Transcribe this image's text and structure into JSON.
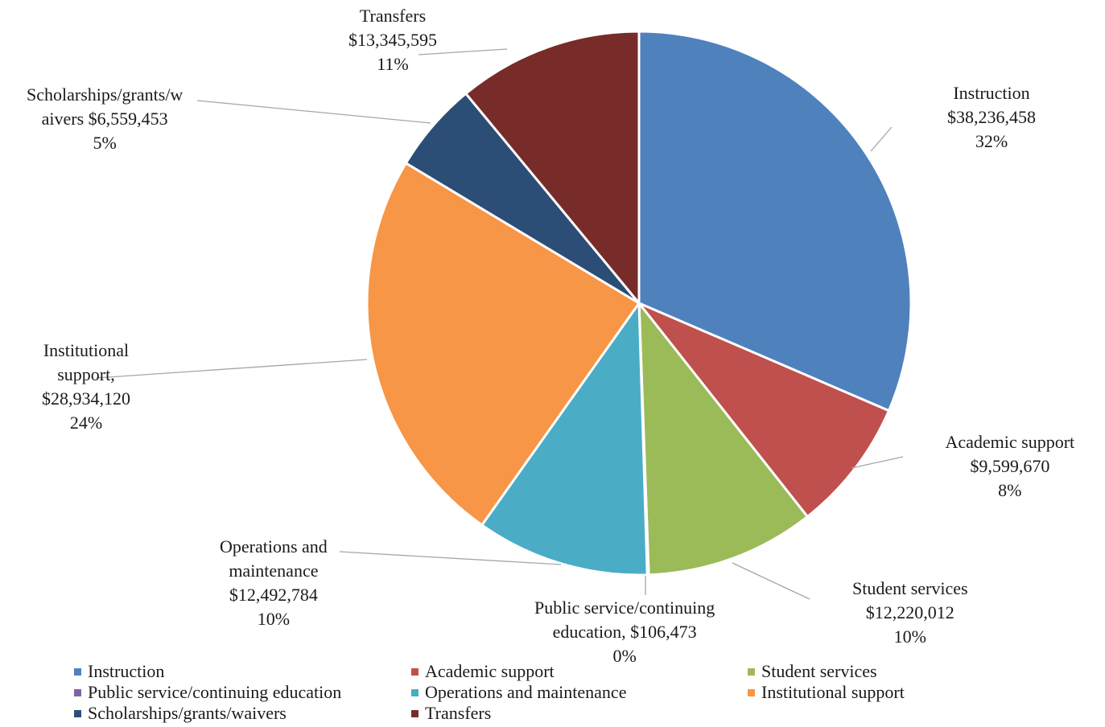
{
  "chart_data": {
    "type": "pie",
    "title": "",
    "slices": [
      {
        "name": "Instruction",
        "value": 38236458,
        "percent": "32%",
        "color": "#4F81BD",
        "label": "Instruction\n$38,236,458\n32%"
      },
      {
        "name": "Academic support",
        "value": 9599670,
        "percent": "8%",
        "color": "#C0504D",
        "label": "Academic support\n$9,599,670\n8%"
      },
      {
        "name": "Student services",
        "value": 12220012,
        "percent": "10%",
        "color": "#9BBB59",
        "label": "Student services\n$12,220,012\n10%"
      },
      {
        "name": "Public service/continuing education",
        "value": 106473,
        "percent": "0%",
        "color": "#8064A2",
        "label": "Public service/continuing\neducation, $106,473\n0%"
      },
      {
        "name": "Operations and maintenance",
        "value": 12492784,
        "percent": "10%",
        "color": "#4BACC6",
        "label": "Operations and\nmaintenance\n$12,492,784\n10%"
      },
      {
        "name": "Institutional support",
        "value": 28934120,
        "percent": "24%",
        "color": "#F79646",
        "label": "Institutional\nsupport,\n$28,934,120\n24%"
      },
      {
        "name": "Scholarships/grants/waivers",
        "value": 6559453,
        "percent": "5%",
        "color": "#2C4D75",
        "label": "Scholarships/grants/w\naivers $6,559,453\n5%"
      },
      {
        "name": "Transfers",
        "value": 13345595,
        "percent": "11%",
        "color": "#772C2A",
        "label": "Transfers\n$13,345,595\n11%"
      }
    ],
    "legend": {
      "position": "bottom",
      "items": [
        "Instruction",
        "Academic support",
        "Student services",
        "Public service/continuing education",
        "Operations and maintenance",
        "Institutional support",
        "Scholarships/grants/waivers",
        "Transfers"
      ]
    }
  }
}
